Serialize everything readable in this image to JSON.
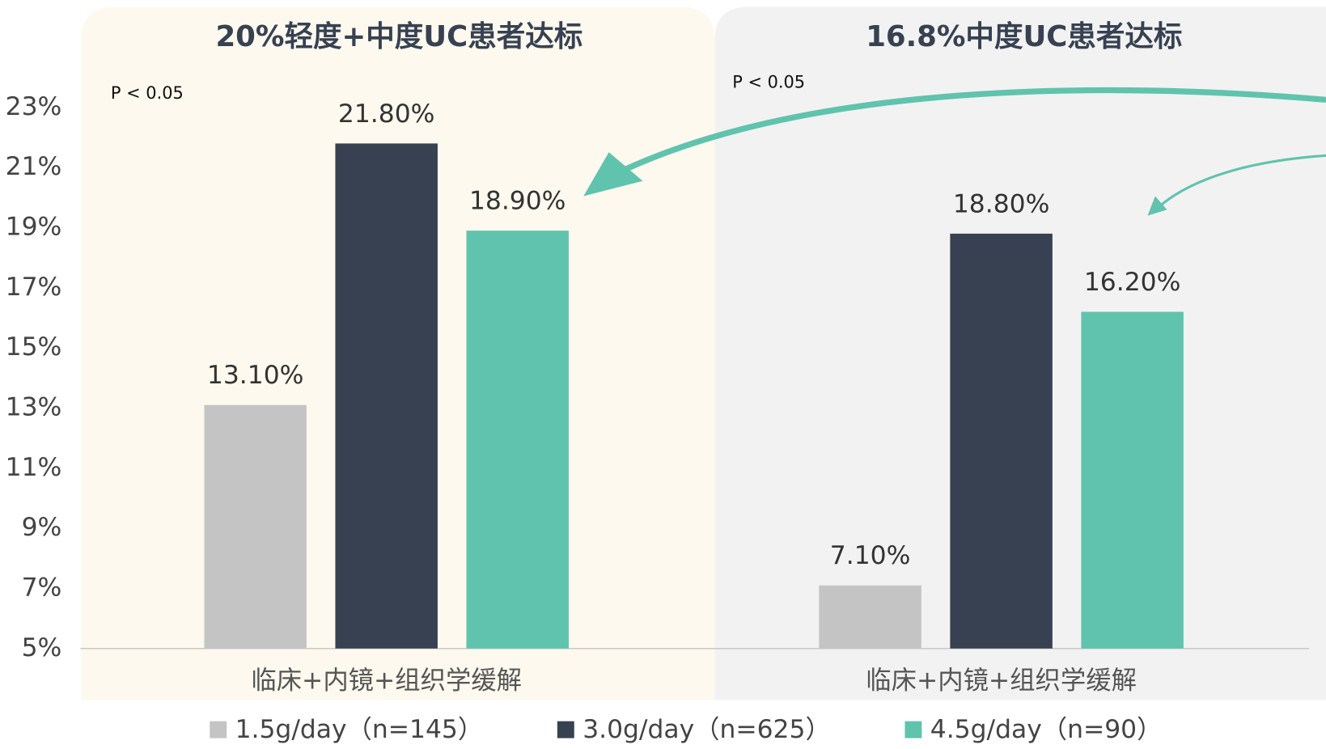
{
  "chart_data": [
    {
      "type": "bar",
      "title": "20%轻度+中度UC患者达标",
      "annotation": "P < 0.05",
      "categories": [
        "临床+内镜+组织学缓解"
      ],
      "series": [
        {
          "name": "1.5g/day（n=145）",
          "color": "#c4c4c4",
          "values": [
            13.1
          ],
          "value_labels": [
            "13.10%"
          ]
        },
        {
          "name": "3.0g/day（n=625）",
          "color": "#374151",
          "values": [
            21.8
          ],
          "value_labels": [
            "21.80%"
          ]
        },
        {
          "name": "4.5g/day（n=90）",
          "color": "#60c3ad",
          "values": [
            18.9
          ],
          "value_labels": [
            "18.90%"
          ]
        }
      ],
      "ylim": [
        5,
        23
      ],
      "yticks": [
        {
          "value": 5,
          "label": "5%"
        },
        {
          "value": 7,
          "label": "7%"
        },
        {
          "value": 9,
          "label": "9%"
        },
        {
          "value": 11,
          "label": "11%"
        },
        {
          "value": 13,
          "label": "13%"
        },
        {
          "value": 15,
          "label": "15%"
        },
        {
          "value": 17,
          "label": "17%"
        },
        {
          "value": 19,
          "label": "19%"
        },
        {
          "value": 21,
          "label": "21%"
        },
        {
          "value": 23,
          "label": "23%"
        }
      ]
    },
    {
      "type": "bar",
      "title": "16.8%中度UC患者达标",
      "annotation": "P < 0.05",
      "categories": [
        "临床+内镜+组织学缓解"
      ],
      "series": [
        {
          "values": [
            7.1
          ],
          "value_labels": [
            "7.10%"
          ]
        },
        {
          "values": [
            18.8
          ],
          "value_labels": [
            "18.80%"
          ]
        },
        {
          "values": [
            16.2
          ],
          "value_labels": [
            "16.20%"
          ]
        }
      ]
    }
  ]
}
